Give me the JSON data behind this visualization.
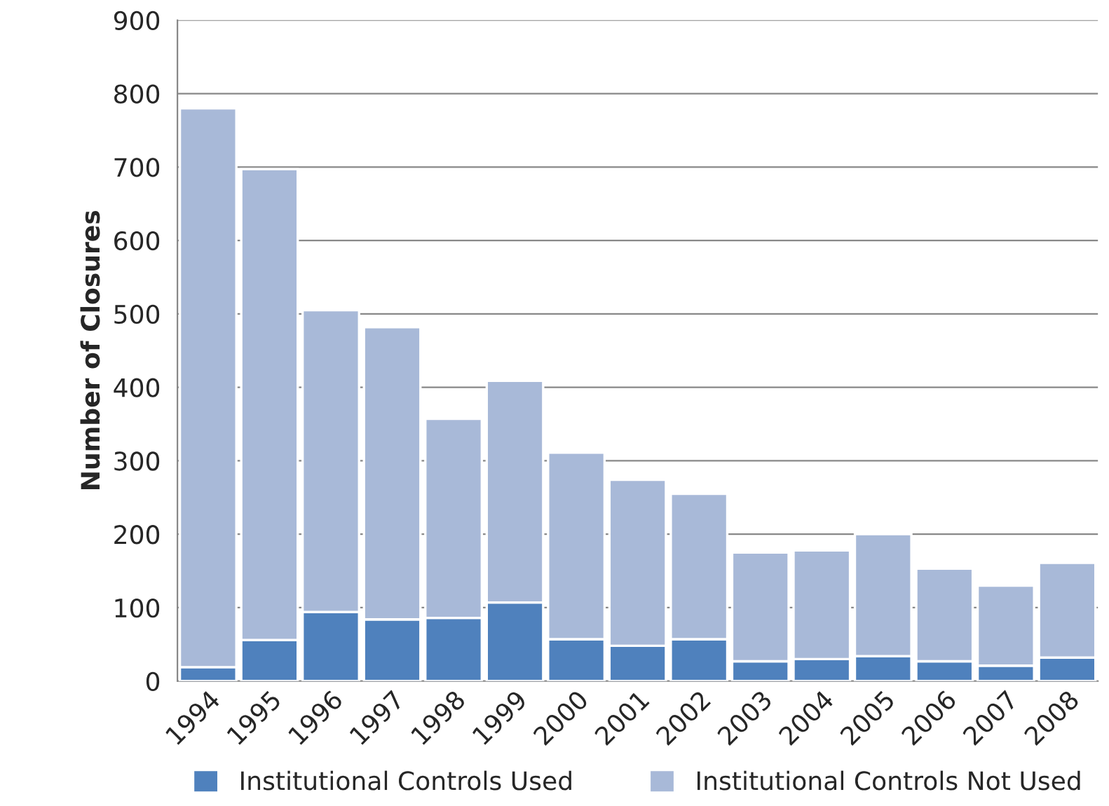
{
  "chart_data": {
    "type": "bar",
    "stacked": true,
    "ylabel": "Number of Closures",
    "categories": [
      "1994",
      "1995",
      "1996",
      "1997",
      "1998",
      "1999",
      "2000",
      "2001",
      "2002",
      "2003",
      "2004",
      "2005",
      "2006",
      "2007",
      "2008"
    ],
    "series": [
      {
        "name": "Institutional Controls Used",
        "color": "#4f81bd",
        "values": [
          19,
          56,
          94,
          84,
          86,
          107,
          57,
          48,
          57,
          27,
          30,
          34,
          27,
          21,
          32
        ]
      },
      {
        "name": "Institutional Controls Not Used",
        "color": "#a8b9d8",
        "values": [
          761,
          641,
          411,
          398,
          271,
          302,
          254,
          226,
          198,
          148,
          148,
          166,
          126,
          109,
          129
        ]
      }
    ],
    "ylim": [
      0,
      900
    ],
    "yticks": [
      0,
      100,
      200,
      300,
      400,
      500,
      600,
      700,
      800,
      900
    ],
    "grid": "y",
    "legend": "bottom"
  }
}
